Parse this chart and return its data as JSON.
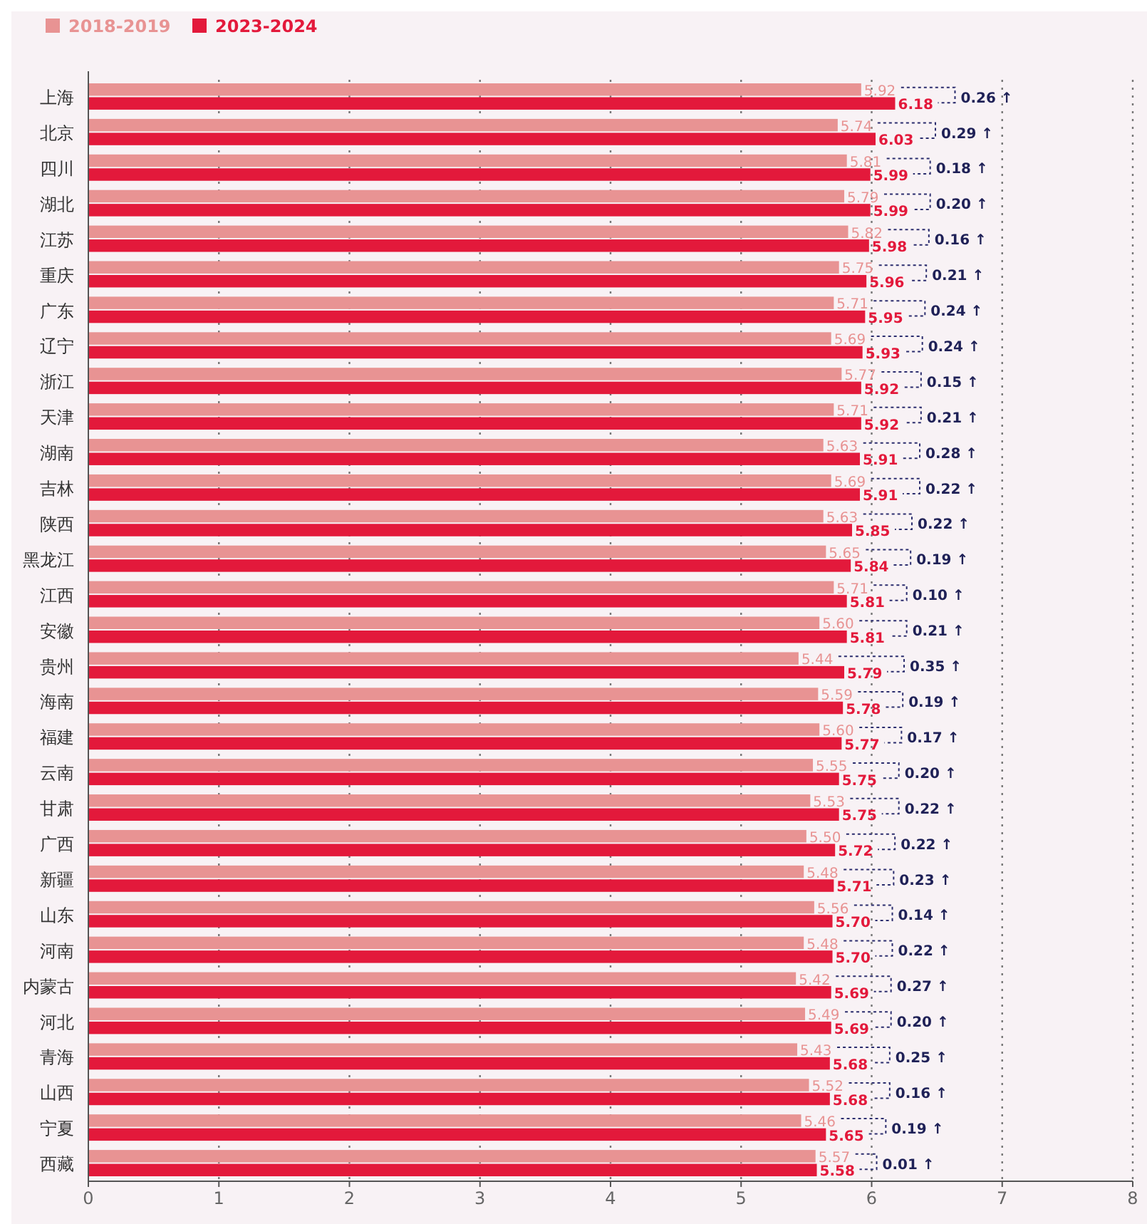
{
  "chart_data": {
    "type": "bar",
    "orientation": "horizontal",
    "legend": "top left",
    "grid": "x",
    "categories": [
      "上海",
      "北京",
      "四川",
      "湖北",
      "江苏",
      "重庆",
      "广东",
      "辽宁",
      "浙江",
      "天津",
      "湖南",
      "吉林",
      "陕西",
      "黑龙江",
      "江西",
      "安徽",
      "贵州",
      "海南",
      "福建",
      "云南",
      "甘肃",
      "广西",
      "新疆",
      "山东",
      "河南",
      "内蒙古",
      "河北",
      "青海",
      "山西",
      "宁夏",
      "西藏"
    ],
    "xlim": [
      0,
      8
    ],
    "xticks": [
      0,
      1,
      2,
      3,
      4,
      5,
      6,
      7,
      8
    ],
    "series": [
      {
        "name": "2018-2019",
        "color": "#e89393",
        "values": [
          5.92,
          5.74,
          5.81,
          5.79,
          5.82,
          5.75,
          5.71,
          5.69,
          5.77,
          5.71,
          5.63,
          5.69,
          5.63,
          5.65,
          5.71,
          5.6,
          5.44,
          5.59,
          5.6,
          5.55,
          5.53,
          5.5,
          5.48,
          5.56,
          5.48,
          5.42,
          5.49,
          5.43,
          5.52,
          5.46,
          5.57
        ],
        "value_labels": [
          "5.92",
          "5.74",
          "5.81",
          "5.79",
          "5.82",
          "5.75",
          "5.71",
          "5.69",
          "5.77",
          "5.71",
          "5.63",
          "5.69",
          "5.63",
          "5.65",
          "5.71",
          "5.60",
          "5.44",
          "5.59",
          "5.60",
          "5.55",
          "5.53",
          "5.50",
          "5.48",
          "5.56",
          "5.48",
          "5.42",
          "5.49",
          "5.43",
          "5.52",
          "5.46",
          "5.57"
        ]
      },
      {
        "name": "2023-2024",
        "color": "#e3193b",
        "values": [
          6.18,
          6.03,
          5.99,
          5.99,
          5.98,
          5.96,
          5.95,
          5.93,
          5.92,
          5.92,
          5.91,
          5.91,
          5.85,
          5.84,
          5.81,
          5.81,
          5.79,
          5.78,
          5.77,
          5.75,
          5.75,
          5.72,
          5.71,
          5.7,
          5.7,
          5.69,
          5.69,
          5.68,
          5.68,
          5.65,
          5.58
        ],
        "value_labels": [
          "6.18",
          "6.03",
          "5.99",
          "5.99",
          "5.98",
          "5.96",
          "5.95",
          "5.93",
          "5.92",
          "5.92",
          "5.91",
          "5.91",
          "5.85",
          "5.84",
          "5.81",
          "5.81",
          "5.79",
          "5.78",
          "5.77",
          "5.75",
          "5.75",
          "5.72",
          "5.71",
          "5.70",
          "5.70",
          "5.69",
          "5.69",
          "5.68",
          "5.68",
          "5.65",
          "5.58"
        ]
      }
    ],
    "annotations": [
      "0.26 ↑",
      "0.29 ↑",
      "0.18 ↑",
      "0.20 ↑",
      "0.16 ↑",
      "0.21 ↑",
      "0.24 ↑",
      "0.24 ↑",
      "0.15 ↑",
      "0.21 ↑",
      "0.28 ↑",
      "0.22 ↑",
      "0.22 ↑",
      "0.19 ↑",
      "0.10 ↑",
      "0.21 ↑",
      "0.35 ↑",
      "0.19 ↑",
      "0.17 ↑",
      "0.20 ↑",
      "0.22 ↑",
      "0.22 ↑",
      "0.23 ↑",
      "0.14 ↑",
      "0.22 ↑",
      "0.27 ↑",
      "0.20 ↑",
      "0.25 ↑",
      "0.16 ↑",
      "0.19 ↑",
      "0.01 ↑"
    ]
  }
}
